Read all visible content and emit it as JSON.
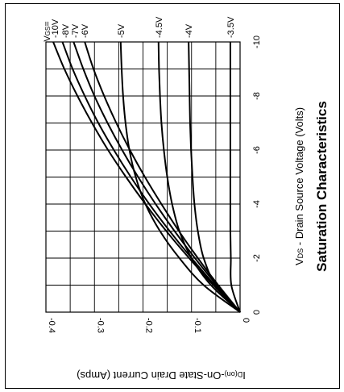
{
  "chart_data": {
    "type": "line",
    "title": "Saturation Characteristics",
    "xlabel_prefix": "V",
    "xlabel_sub": "DS",
    "xlabel_rest": " - Drain Source Voltage (Volts)",
    "ylabel_prefix": "I",
    "ylabel_sub": "D(on)",
    "ylabel_rest": "-On-State Drain Current (Amps)",
    "vgs_label_main": "V",
    "vgs_label_sub": "GS",
    "vgs_label_eq": "=",
    "x_ticks": [
      "0",
      "-2",
      "-4",
      "-6",
      "-8",
      "-10"
    ],
    "y_ticks": [
      "0",
      "-0.1",
      "-0.2",
      "-0.3",
      "-0.4"
    ],
    "xlim": [
      0,
      -10
    ],
    "ylim": [
      0,
      -0.4
    ],
    "grid": true,
    "series": [
      {
        "name": "-10V",
        "x": [
          0,
          -1,
          -2,
          -3,
          -4,
          -5,
          -6,
          -7,
          -8,
          -9,
          -10
        ],
        "values": [
          0,
          -0.055,
          -0.105,
          -0.152,
          -0.195,
          -0.235,
          -0.272,
          -0.305,
          -0.335,
          -0.362,
          -0.385
        ]
      },
      {
        "name": "-8V",
        "x": [
          0,
          -1,
          -2,
          -3,
          -4,
          -5,
          -6,
          -7,
          -8,
          -9,
          -10
        ],
        "values": [
          0,
          -0.052,
          -0.1,
          -0.145,
          -0.187,
          -0.225,
          -0.26,
          -0.292,
          -0.32,
          -0.345,
          -0.366
        ]
      },
      {
        "name": "-7V",
        "x": [
          0,
          -1,
          -2,
          -3,
          -4,
          -5,
          -6,
          -7,
          -8,
          -9,
          -10
        ],
        "values": [
          0,
          -0.048,
          -0.093,
          -0.135,
          -0.174,
          -0.21,
          -0.243,
          -0.273,
          -0.3,
          -0.323,
          -0.343
        ]
      },
      {
        "name": "-6V",
        "x": [
          0,
          -1,
          -2,
          -3,
          -4,
          -5,
          -6,
          -7,
          -8,
          -9,
          -10
        ],
        "values": [
          0,
          -0.045,
          -0.087,
          -0.126,
          -0.162,
          -0.196,
          -0.227,
          -0.255,
          -0.28,
          -0.302,
          -0.32
        ]
      },
      {
        "name": "-5V",
        "x": [
          0,
          -1,
          -2,
          -3,
          -4,
          -5,
          -6,
          -7,
          -8,
          -9,
          -10
        ],
        "values": [
          0,
          -0.075,
          -0.125,
          -0.165,
          -0.195,
          -0.215,
          -0.228,
          -0.236,
          -0.241,
          -0.244,
          -0.246
        ]
      },
      {
        "name": "-4.5V",
        "x": [
          0,
          -1,
          -2,
          -3,
          -4,
          -5,
          -6,
          -7,
          -8,
          -9,
          -10
        ],
        "values": [
          0,
          -0.06,
          -0.1,
          -0.125,
          -0.14,
          -0.15,
          -0.157,
          -0.162,
          -0.165,
          -0.167,
          -0.168
        ]
      },
      {
        "name": "-4V",
        "x": [
          0,
          -1,
          -2,
          -3,
          -4,
          -5,
          -6,
          -7,
          -8,
          -9,
          -10
        ],
        "values": [
          0,
          -0.05,
          -0.075,
          -0.087,
          -0.094,
          -0.098,
          -0.101,
          -0.103,
          -0.104,
          -0.105,
          -0.106
        ]
      },
      {
        "name": "-3.5V",
        "x": [
          0,
          -1,
          -2,
          -3,
          -4,
          -5,
          -6,
          -7,
          -8,
          -9,
          -10
        ],
        "values": [
          0,
          -0.018,
          -0.019,
          -0.02,
          -0.02,
          -0.02,
          -0.02,
          -0.02,
          -0.02,
          -0.02,
          -0.02
        ]
      }
    ]
  }
}
